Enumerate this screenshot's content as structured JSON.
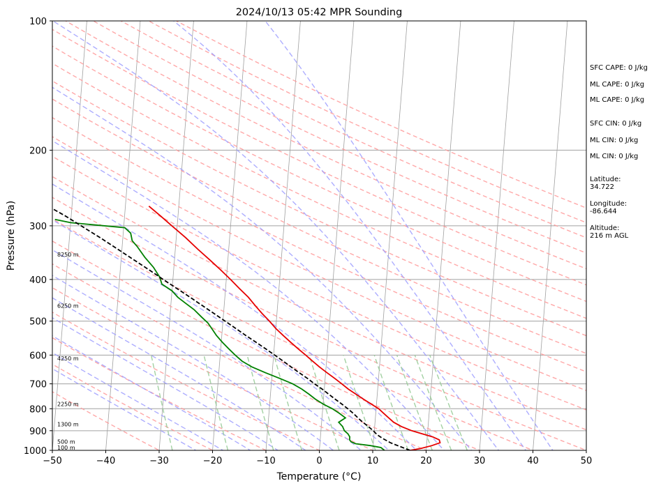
{
  "chart_data": {
    "type": "line",
    "title": "2024/10/13 05:42 MPR Sounding",
    "xlabel": "Temperature (°C)",
    "ylabel": "Pressure (hPa)",
    "xlim": [
      -50,
      50
    ],
    "ylim": [
      1000,
      100
    ],
    "y_scale": "log",
    "x_ticks": [
      "−50",
      "−40",
      "−30",
      "−20",
      "−10",
      "0",
      "10",
      "20",
      "30",
      "40",
      "50"
    ],
    "x_tick_values": [
      -50,
      -40,
      -30,
      -20,
      -10,
      0,
      10,
      20,
      30,
      40,
      50
    ],
    "y_ticks": [
      "100",
      "200",
      "300",
      "400",
      "500",
      "600",
      "700",
      "800",
      "900",
      "1000"
    ],
    "y_tick_values": [
      100,
      200,
      300,
      400,
      500,
      600,
      700,
      800,
      900,
      1000
    ],
    "grid": true,
    "legend": "none",
    "colors": {
      "temperature": "#e60000",
      "dewpoint": "#008000",
      "parcel": "#000000",
      "dry_adiabat": "#ff9999",
      "moist_adiabat": "#9999ff",
      "mixing_ratio": "#99cc99",
      "isotherm": "#a0a0a0",
      "isobar": "#a0a0a0"
    },
    "altitude_labels": [
      {
        "text": "100 m",
        "p": 985
      },
      {
        "text": "500 m",
        "p": 955
      },
      {
        "text": "1300 m",
        "p": 870
      },
      {
        "text": "2250 m",
        "p": 780
      },
      {
        "text": "4250 m",
        "p": 610
      },
      {
        "text": "6250 m",
        "p": 460
      },
      {
        "text": "8250 m",
        "p": 350
      }
    ],
    "series": [
      {
        "key": "temperature",
        "points": [
          [
            1000,
            17.0
          ],
          [
            990,
            19.0
          ],
          [
            975,
            21.0
          ],
          [
            960,
            22.5
          ],
          [
            945,
            22.3
          ],
          [
            930,
            21.0
          ],
          [
            915,
            19.0
          ],
          [
            900,
            17.0
          ],
          [
            880,
            15.0
          ],
          [
            860,
            13.5
          ],
          [
            840,
            12.5
          ],
          [
            820,
            11.5
          ],
          [
            800,
            10.5
          ],
          [
            780,
            9.0
          ],
          [
            760,
            7.5
          ],
          [
            740,
            6.0
          ],
          [
            720,
            4.5
          ],
          [
            700,
            3.2
          ],
          [
            680,
            1.8
          ],
          [
            660,
            0.3
          ],
          [
            640,
            -1.2
          ],
          [
            620,
            -2.6
          ],
          [
            600,
            -4.0
          ],
          [
            580,
            -5.5
          ],
          [
            560,
            -7.0
          ],
          [
            540,
            -8.5
          ],
          [
            520,
            -10.0
          ],
          [
            500,
            -11.3
          ],
          [
            480,
            -12.8
          ],
          [
            460,
            -14.2
          ],
          [
            440,
            -15.6
          ],
          [
            420,
            -17.4
          ],
          [
            400,
            -19.2
          ],
          [
            380,
            -21.2
          ],
          [
            360,
            -23.4
          ],
          [
            340,
            -25.8
          ],
          [
            320,
            -28.2
          ],
          [
            300,
            -31.0
          ],
          [
            285,
            -33.2
          ],
          [
            270,
            -35.6
          ]
        ]
      },
      {
        "key": "dewpoint",
        "points": [
          [
            1000,
            12.2
          ],
          [
            985,
            11.5
          ],
          [
            975,
            9.5
          ],
          [
            965,
            6.7
          ],
          [
            955,
            5.8
          ],
          [
            945,
            5.5
          ],
          [
            930,
            5.5
          ],
          [
            915,
            5.1
          ],
          [
            900,
            4.4
          ],
          [
            880,
            4.0
          ],
          [
            860,
            3.2
          ],
          [
            840,
            4.4
          ],
          [
            820,
            3.2
          ],
          [
            800,
            1.8
          ],
          [
            780,
            0.0
          ],
          [
            760,
            -1.5
          ],
          [
            740,
            -2.8
          ],
          [
            720,
            -4.2
          ],
          [
            700,
            -6.0
          ],
          [
            680,
            -8.5
          ],
          [
            660,
            -11.2
          ],
          [
            640,
            -13.8
          ],
          [
            620,
            -15.8
          ],
          [
            600,
            -17.2
          ],
          [
            580,
            -18.5
          ],
          [
            560,
            -19.8
          ],
          [
            540,
            -21.0
          ],
          [
            520,
            -22.0
          ],
          [
            505,
            -22.8
          ],
          [
            490,
            -24.0
          ],
          [
            470,
            -25.6
          ],
          [
            455,
            -27.2
          ],
          [
            440,
            -28.8
          ],
          [
            425,
            -30.0
          ],
          [
            410,
            -32.0
          ],
          [
            395,
            -32.5
          ],
          [
            375,
            -33.8
          ],
          [
            355,
            -35.6
          ],
          [
            335,
            -37.2
          ],
          [
            325,
            -38.2
          ],
          [
            312,
            -38.6
          ],
          [
            303,
            -39.8
          ],
          [
            295,
            -50.0
          ],
          [
            290,
            -53.0
          ]
        ]
      },
      {
        "key": "parcel",
        "points": [
          [
            1000,
            17.0
          ],
          [
            975,
            14.6
          ],
          [
            960,
            13.2
          ],
          [
            940,
            11.8
          ],
          [
            920,
            10.6
          ],
          [
            900,
            9.8
          ],
          [
            880,
            8.8
          ],
          [
            850,
            7.2
          ],
          [
            820,
            5.8
          ],
          [
            800,
            4.7
          ],
          [
            780,
            3.5
          ],
          [
            760,
            2.2
          ],
          [
            740,
            0.9
          ],
          [
            720,
            -0.4
          ],
          [
            700,
            -1.9
          ],
          [
            680,
            -3.3
          ],
          [
            660,
            -4.9
          ],
          [
            640,
            -6.5
          ],
          [
            620,
            -8.1
          ],
          [
            600,
            -9.8
          ],
          [
            580,
            -11.6
          ],
          [
            560,
            -13.5
          ],
          [
            540,
            -15.5
          ],
          [
            520,
            -17.5
          ],
          [
            500,
            -19.6
          ],
          [
            480,
            -21.8
          ],
          [
            460,
            -24.1
          ],
          [
            440,
            -26.5
          ],
          [
            420,
            -29.1
          ],
          [
            400,
            -31.8
          ],
          [
            380,
            -34.6
          ],
          [
            360,
            -37.6
          ],
          [
            340,
            -40.8
          ],
          [
            320,
            -44.2
          ],
          [
            300,
            -48.0
          ],
          [
            285,
            -51.0
          ],
          [
            272,
            -54.0
          ]
        ]
      }
    ]
  },
  "panel": {
    "sfc_cape": "SFC CAPE: 0 J/kg",
    "ml_cape_1": "ML CAPE: 0 J/kg",
    "ml_cape_2": "ML CAPE: 0 J/kg",
    "sfc_cin": "SFC CIN: 0 J/kg",
    "ml_cin_1": "ML CIN: 0 J/kg",
    "ml_cin_2": "ML CIN: 0 J/kg",
    "latitude_label": "Latitude:",
    "latitude_value": "34.722",
    "longitude_label": "Longitude:",
    "longitude_value": "-86.644",
    "altitude_label": "Altitude:",
    "altitude_value": "216 m AGL"
  }
}
